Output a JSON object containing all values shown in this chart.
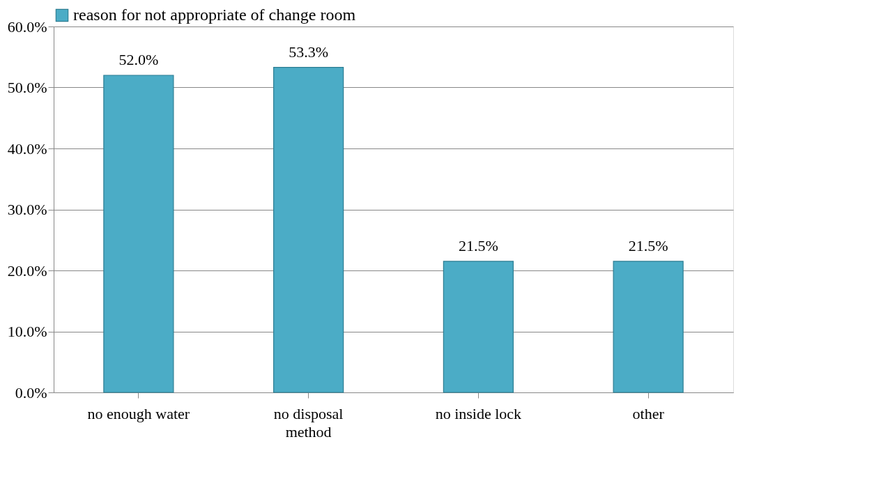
{
  "chart_data": {
    "type": "bar",
    "categories": [
      "no enough water",
      "no disposal method",
      "no inside lock",
      "other"
    ],
    "series": [
      {
        "name": "reason for   not appropriate of change room",
        "color": "#4bacc6",
        "values": [
          52.0,
          53.3,
          21.5,
          21.5
        ],
        "value_labels": [
          "52.0%",
          "53.3%",
          "21.5%",
          "21.5%"
        ]
      }
    ],
    "ylim": [
      0,
      60
    ],
    "yticks": [
      {
        "value": 0,
        "label": "0.0%"
      },
      {
        "value": 10,
        "label": "10.0%"
      },
      {
        "value": 20,
        "label": "20.0%"
      },
      {
        "value": 30,
        "label": "30.0%"
      },
      {
        "value": 40,
        "label": "40.0%"
      },
      {
        "value": 50,
        "label": "50.0%"
      },
      {
        "value": 60,
        "label": "60.0%"
      }
    ],
    "grid": "y",
    "legend": "top"
  }
}
